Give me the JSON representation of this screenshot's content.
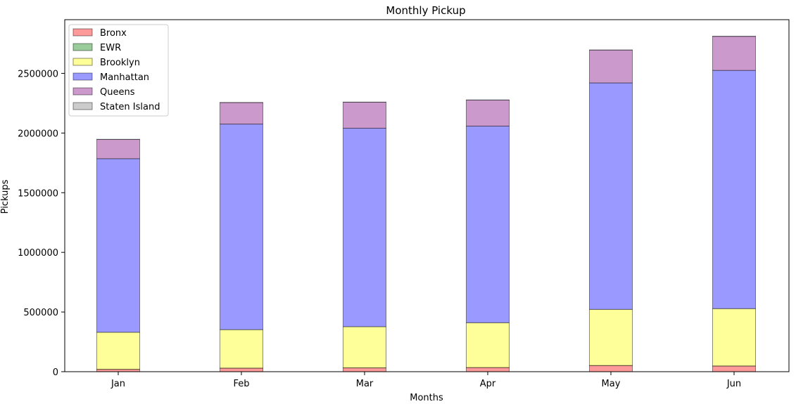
{
  "chart_data": {
    "type": "bar",
    "stacked": true,
    "title": "Monthly Pickup",
    "xlabel": "Months",
    "ylabel": "Pickups",
    "categories": [
      "Jan",
      "Feb",
      "Mar",
      "Apr",
      "May",
      "Jun"
    ],
    "ylim": [
      0,
      2950000
    ],
    "yticks": [
      0,
      500000,
      1000000,
      1500000,
      2000000,
      2500000
    ],
    "ytick_labels": [
      "0",
      "500000",
      "1000000",
      "1500000",
      "2000000",
      "2500000"
    ],
    "grid": false,
    "legend_position": "upper-left",
    "series": [
      {
        "name": "Bronx",
        "color": "#ff9a9a",
        "values": [
          20000,
          30000,
          32000,
          35000,
          52000,
          48000
        ]
      },
      {
        "name": "EWR",
        "color": "#9acb9a",
        "values": [
          300,
          300,
          300,
          300,
          300,
          300
        ]
      },
      {
        "name": "Brooklyn",
        "color": "#ffff99",
        "values": [
          310000,
          322000,
          345000,
          375000,
          470000,
          480000
        ]
      },
      {
        "name": "Manhattan",
        "color": "#9999ff",
        "values": [
          1455000,
          1723000,
          1663000,
          1648000,
          1898000,
          1997000
        ]
      },
      {
        "name": "Queens",
        "color": "#cc99cc",
        "values": [
          161000,
          180000,
          218000,
          218000,
          275000,
          285000
        ]
      },
      {
        "name": "Staten Island",
        "color": "#cccccc",
        "values": [
          1000,
          1000,
          1000,
          1000,
          1000,
          1000
        ]
      }
    ]
  }
}
